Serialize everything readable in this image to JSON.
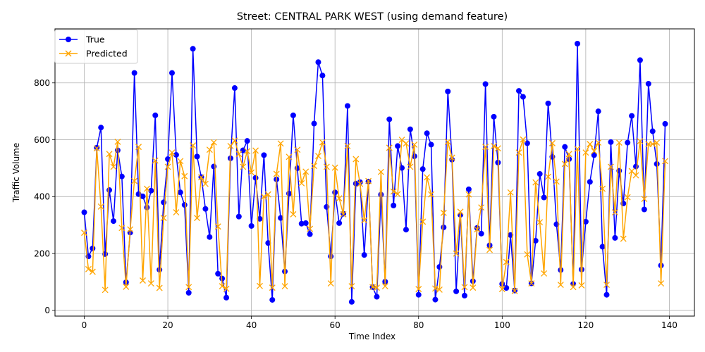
{
  "chart_data": {
    "type": "line",
    "title": "Street: CENTRAL PARK WEST (using demand feature)",
    "xlabel": "Time Index",
    "ylabel": "Traffic Volume",
    "xlim": [
      -7,
      146
    ],
    "ylim": [
      -20,
      990
    ],
    "xticks": [
      0,
      20,
      40,
      60,
      80,
      100,
      120,
      140
    ],
    "yticks": [
      0,
      200,
      400,
      600,
      800
    ],
    "grid": true,
    "legend_position": "upper-left",
    "series": [
      {
        "name": "True",
        "color": "#0000ff",
        "marker": "circle",
        "values": [
          345,
          190,
          218,
          572,
          643,
          198,
          423,
          314,
          563,
          471,
          99,
          274,
          835,
          409,
          401,
          362,
          421,
          686,
          143,
          380,
          532,
          835,
          547,
          415,
          371,
          62,
          920,
          541,
          469,
          357,
          258,
          506,
          129,
          112,
          45,
          535,
          782,
          330,
          563,
          596,
          297,
          466,
          322,
          546,
          237,
          37,
          461,
          325,
          137,
          411,
          686,
          500,
          305,
          307,
          268,
          657,
          873,
          826,
          364,
          190,
          415,
          307,
          340,
          719,
          30,
          446,
          451,
          195,
          453,
          82,
          48,
          407,
          101,
          672,
          369,
          578,
          501,
          284,
          637,
          542,
          55,
          497,
          623,
          583,
          38,
          153,
          292,
          770,
          530,
          67,
          336,
          52,
          426,
          103,
          290,
          270,
          796,
          229,
          681,
          520,
          93,
          79,
          265,
          70,
          772,
          751,
          588,
          95,
          245,
          480,
          397,
          728,
          540,
          303,
          142,
          575,
          532,
          93,
          938,
          144,
          312,
          452,
          546,
          700,
          224,
          55,
          592,
          255,
          491,
          376,
          590,
          684,
          506,
          880,
          355,
          797,
          630,
          515,
          158,
          656
        ]
      },
      {
        "name": "Predicted",
        "color": "#ffa500",
        "marker": "x",
        "values": [
          273,
          145,
          136,
          570,
          365,
          72,
          550,
          505,
          593,
          290,
          83,
          285,
          455,
          575,
          105,
          428,
          95,
          527,
          79,
          325,
          505,
          555,
          345,
          525,
          472,
          82,
          580,
          325,
          468,
          445,
          565,
          591,
          295,
          85,
          76,
          578,
          597,
          550,
          505,
          560,
          485,
          562,
          86,
          400,
          408,
          80,
          480,
          587,
          85,
          540,
          338,
          565,
          447,
          488,
          287,
          508,
          543,
          591,
          505,
          95,
          502,
          394,
          338,
          578,
          85,
          532,
          445,
          317,
          455,
          82,
          80,
          487,
          85,
          572,
          418,
          409,
          600,
          587,
          505,
          583,
          75,
          312,
          468,
          408,
          77,
          73,
          343,
          593,
          537,
          200,
          347,
          82,
          408,
          80,
          285,
          362,
          575,
          213,
          578,
          570,
          75,
          170,
          415,
          68,
          555,
          601,
          197,
          95,
          450,
          310,
          130,
          470,
          588,
          453,
          90,
          515,
          550,
          82,
          568,
          88,
          555,
          585,
          560,
          590,
          428,
          90,
          505,
          345,
          590,
          252,
          398,
          490,
          475,
          595,
          392,
          585,
          585,
          590,
          95,
          525
        ]
      }
    ]
  }
}
